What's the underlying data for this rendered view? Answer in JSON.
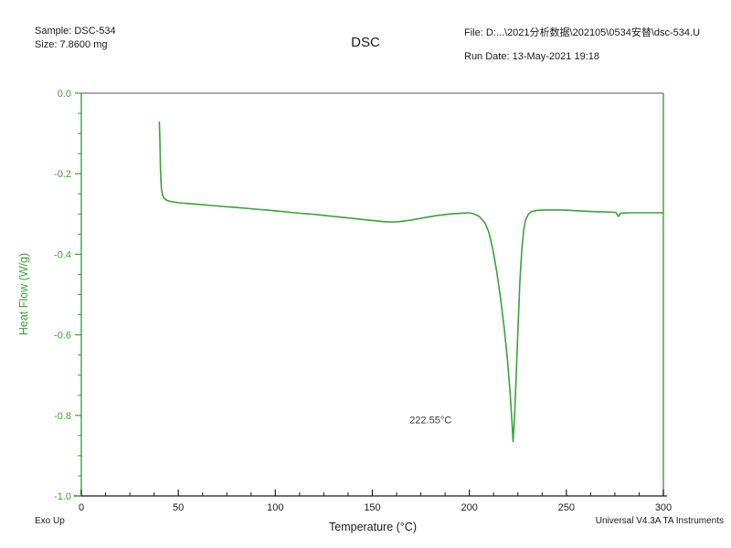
{
  "header": {
    "sample_label": "Sample: DSC-534",
    "size_label": "Size:  7.8600 mg",
    "title": "DSC",
    "file_label": "File: D:...\\2021分析数据\\202105\\0534安替\\dsc-534.U",
    "run_date_label": "Run Date: 13-May-2021 19:18"
  },
  "footer": {
    "exo_label": "Exo Up",
    "instrument_label": "Universal V4.3A TA Instruments"
  },
  "chart_data": {
    "type": "line",
    "title": "DSC",
    "xlabel": "Temperature (°C)",
    "ylabel": "Heat Flow (W/g)",
    "xlim": [
      0,
      300
    ],
    "ylim": [
      -1.0,
      0.0
    ],
    "grid": false,
    "x_ticks": [
      {
        "v": 0,
        "label": "0"
      },
      {
        "v": 50,
        "label": "50"
      },
      {
        "v": 100,
        "label": "100"
      },
      {
        "v": 150,
        "label": "150"
      },
      {
        "v": 200,
        "label": "200"
      },
      {
        "v": 250,
        "label": "250"
      },
      {
        "v": 300,
        "label": "300"
      }
    ],
    "x_minor_step": 12.5,
    "y_ticks": [
      {
        "v": 0,
        "label": "0.0"
      },
      {
        "v": -0.2,
        "label": "-0.2"
      },
      {
        "v": -0.4,
        "label": "-0.4"
      },
      {
        "v": -0.6,
        "label": "-0.6"
      },
      {
        "v": -0.8,
        "label": "-0.8"
      },
      {
        "v": -1,
        "label": "-1.0"
      }
    ],
    "y_minor_step": 0.05,
    "curve_color": "#3aa33a",
    "axis_color_y": "#3aa33a",
    "axis_color_x": "#1a1a1a",
    "frame_top_color": "#777777",
    "annotation": {
      "text": "222.55°C",
      "x": 180,
      "y": -0.82
    },
    "peak": {
      "temperature_c": 222.55,
      "min_heat_flow_wg": -0.865
    },
    "series": [
      {
        "name": "Heat Flow",
        "points": [
          [
            40.2,
            -0.072
          ],
          [
            40.4,
            -0.1
          ],
          [
            40.6,
            -0.14
          ],
          [
            40.8,
            -0.185
          ],
          [
            41.0,
            -0.215
          ],
          [
            41.3,
            -0.238
          ],
          [
            41.8,
            -0.252
          ],
          [
            42.5,
            -0.26
          ],
          [
            44,
            -0.266
          ],
          [
            46,
            -0.269
          ],
          [
            50,
            -0.272
          ],
          [
            55,
            -0.274
          ],
          [
            60,
            -0.276
          ],
          [
            70,
            -0.28
          ],
          [
            80,
            -0.284
          ],
          [
            90,
            -0.288
          ],
          [
            100,
            -0.292
          ],
          [
            110,
            -0.297
          ],
          [
            120,
            -0.301
          ],
          [
            130,
            -0.306
          ],
          [
            140,
            -0.311
          ],
          [
            150,
            -0.316
          ],
          [
            156,
            -0.319
          ],
          [
            160,
            -0.32
          ],
          [
            164,
            -0.319
          ],
          [
            170,
            -0.315
          ],
          [
            176,
            -0.31
          ],
          [
            183,
            -0.304
          ],
          [
            190,
            -0.3
          ],
          [
            196,
            -0.298
          ],
          [
            200,
            -0.297
          ],
          [
            202,
            -0.299
          ],
          [
            205,
            -0.306
          ],
          [
            208,
            -0.322
          ],
          [
            210,
            -0.345
          ],
          [
            212,
            -0.385
          ],
          [
            214,
            -0.44
          ],
          [
            216,
            -0.505
          ],
          [
            218,
            -0.585
          ],
          [
            219.5,
            -0.655
          ],
          [
            221,
            -0.745
          ],
          [
            222,
            -0.82
          ],
          [
            222.55,
            -0.865
          ],
          [
            223.2,
            -0.815
          ],
          [
            224,
            -0.72
          ],
          [
            225,
            -0.59
          ],
          [
            226,
            -0.47
          ],
          [
            227,
            -0.39
          ],
          [
            228,
            -0.34
          ],
          [
            229,
            -0.315
          ],
          [
            230.5,
            -0.3
          ],
          [
            232,
            -0.294
          ],
          [
            235,
            -0.291
          ],
          [
            240,
            -0.29
          ],
          [
            248,
            -0.29
          ],
          [
            256,
            -0.292
          ],
          [
            264,
            -0.294
          ],
          [
            270,
            -0.295
          ],
          [
            275.5,
            -0.296
          ],
          [
            276.8,
            -0.306
          ],
          [
            278,
            -0.298
          ],
          [
            282,
            -0.297
          ],
          [
            290,
            -0.297
          ],
          [
            300,
            -0.297
          ]
        ]
      }
    ]
  }
}
